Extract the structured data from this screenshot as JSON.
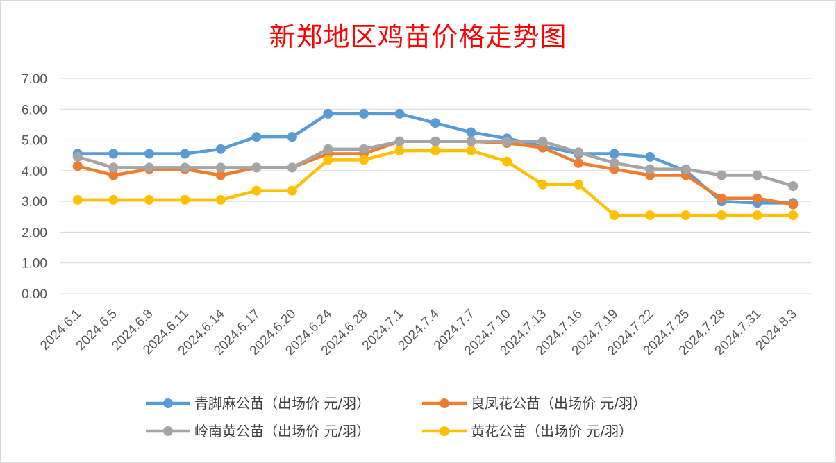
{
  "chart_data": {
    "type": "line",
    "title": "新郑地区鸡苗价格走势图",
    "xlabel": "",
    "ylabel": "",
    "ylim": [
      0,
      7
    ],
    "yticks": [
      "0.00",
      "1.00",
      "2.00",
      "3.00",
      "4.00",
      "5.00",
      "6.00",
      "7.00"
    ],
    "grid": true,
    "legend_position": "bottom",
    "categories": [
      "2024.6.1",
      "2024.6.5",
      "2024.6.8",
      "2024.6.11",
      "2024.6.14",
      "2024.6.17",
      "2024.6.20",
      "2024.6.24",
      "2024.6.28",
      "2024.7.1",
      "2024.7.4",
      "2024.7.7",
      "2024.7.10",
      "2024.7.13",
      "2024.7.16",
      "2024.7.19",
      "2024.7.22",
      "2024.7.25",
      "2024.7.28",
      "2024.7.31",
      "2024.8.3"
    ],
    "series": [
      {
        "name": "青脚麻公苗（出场价 元/羽）",
        "color": "#5b9bd5",
        "values": [
          4.55,
          4.55,
          4.55,
          4.55,
          4.7,
          5.1,
          5.1,
          5.85,
          5.85,
          5.85,
          5.55,
          5.25,
          5.05,
          4.8,
          4.55,
          4.55,
          4.45,
          4.0,
          3.0,
          2.95,
          2.95
        ]
      },
      {
        "name": "良凤花公苗（出场价 元/羽）",
        "color": "#ed7d31",
        "values": [
          4.15,
          3.85,
          4.05,
          4.05,
          3.85,
          4.1,
          4.1,
          4.55,
          4.55,
          4.95,
          4.95,
          4.95,
          4.9,
          4.75,
          4.25,
          4.05,
          3.85,
          3.85,
          3.1,
          3.1,
          2.9
        ]
      },
      {
        "name": "岭南黄公苗（出场价 元/羽）",
        "color": "#a5a5a5",
        "values": [
          4.45,
          4.1,
          4.1,
          4.1,
          4.1,
          4.1,
          4.1,
          4.7,
          4.7,
          4.95,
          4.95,
          4.95,
          4.95,
          4.95,
          4.6,
          4.25,
          4.05,
          4.05,
          3.85,
          3.85,
          3.5
        ]
      },
      {
        "name": "黄花公苗（出场价 元/羽）",
        "color": "#ffc000",
        "values": [
          3.05,
          3.05,
          3.05,
          3.05,
          3.05,
          3.35,
          3.35,
          4.35,
          4.35,
          4.65,
          4.65,
          4.65,
          4.3,
          3.55,
          3.55,
          2.55,
          2.55,
          2.55,
          2.55,
          2.55,
          2.55
        ]
      }
    ]
  }
}
